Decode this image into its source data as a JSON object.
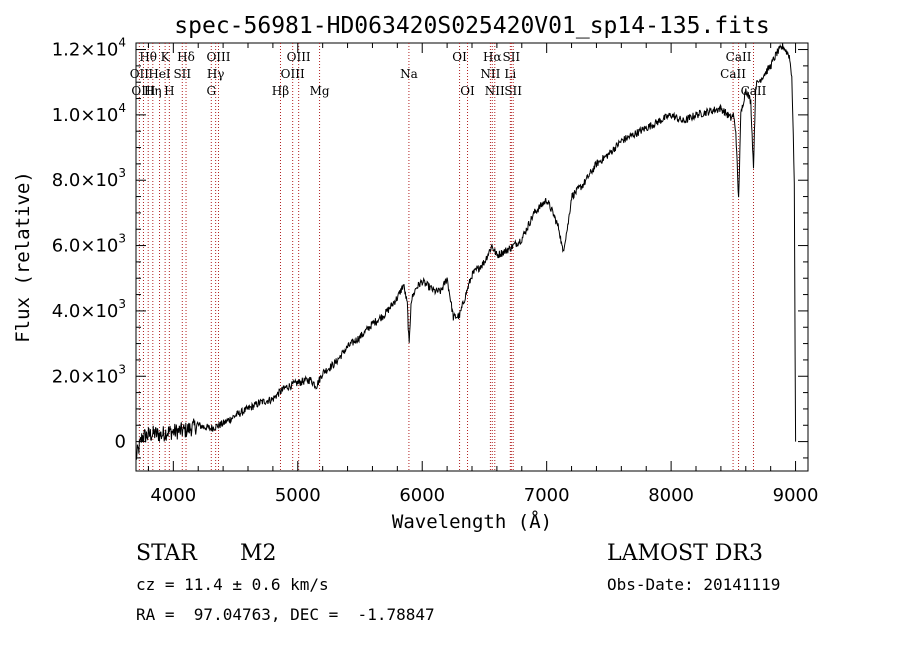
{
  "chart_data": {
    "type": "line",
    "title": "spec-56981-HD063420S025420V01_sp14-135.fits",
    "xlabel": "Wavelength (Å)",
    "ylabel": "Flux (relative)",
    "xlim": [
      3700,
      9100
    ],
    "ylim": [
      -900,
      12200
    ],
    "x_ticks": [
      4000,
      5000,
      6000,
      7000,
      8000,
      9000
    ],
    "x_tick_labels": [
      "4000",
      "5000",
      "6000",
      "7000",
      "8000",
      "9000"
    ],
    "y_ticks": [
      {
        "value": 0,
        "mantissa": "0",
        "exp": ""
      },
      {
        "value": 2000,
        "mantissa": "2.0×10",
        "exp": "3"
      },
      {
        "value": 4000,
        "mantissa": "4.0×10",
        "exp": "3"
      },
      {
        "value": 6000,
        "mantissa": "6.0×10",
        "exp": "3"
      },
      {
        "value": 8000,
        "mantissa": "8.0×10",
        "exp": "3"
      },
      {
        "value": 10000,
        "mantissa": "1.0×10",
        "exp": "4"
      },
      {
        "value": 12000,
        "mantissa": "1.2×10",
        "exp": "4"
      }
    ],
    "line_color": "#000000",
    "line_marker_color": "#b22222",
    "spectrum": {
      "x": [
        3700,
        3750,
        3800,
        3850,
        3900,
        3950,
        4000,
        4100,
        4200,
        4300,
        4400,
        4500,
        4600,
        4700,
        4800,
        4850,
        4900,
        5000,
        5100,
        5150,
        5200,
        5300,
        5400,
        5500,
        5600,
        5700,
        5800,
        5850,
        5880,
        5895,
        5910,
        5950,
        6000,
        6100,
        6150,
        6200,
        6250,
        6300,
        6350,
        6400,
        6450,
        6500,
        6560,
        6600,
        6700,
        6800,
        6900,
        7000,
        7050,
        7100,
        7130,
        7170,
        7200,
        7300,
        7400,
        7500,
        7600,
        7700,
        7800,
        7900,
        8000,
        8100,
        8200,
        8300,
        8400,
        8480,
        8500,
        8520,
        8542,
        8560,
        8600,
        8640,
        8662,
        8680,
        8700,
        8800,
        8850,
        8900,
        8950,
        8970,
        8990,
        9000
      ],
      "y": [
        -500,
        150,
        200,
        250,
        200,
        300,
        300,
        350,
        500,
        400,
        550,
        800,
        1000,
        1200,
        1300,
        1500,
        1650,
        1800,
        1900,
        1700,
        2100,
        2400,
        2900,
        3200,
        3600,
        3900,
        4400,
        4800,
        4200,
        2900,
        4300,
        4700,
        4900,
        4600,
        4600,
        5000,
        3800,
        3850,
        4500,
        5100,
        5300,
        5500,
        6000,
        5700,
        5900,
        6200,
        7000,
        7400,
        7000,
        6500,
        5800,
        6600,
        7500,
        7900,
        8500,
        8800,
        9200,
        9400,
        9600,
        9800,
        10000,
        9800,
        10000,
        10100,
        10200,
        9900,
        10000,
        9500,
        7400,
        10000,
        10800,
        10400,
        8400,
        10900,
        11000,
        11500,
        11900,
        12100,
        11800,
        11200,
        8000,
        0
      ]
    },
    "spectral_lines": [
      {
        "name": "Hθ",
        "wavelength": 3798,
        "row": 0
      },
      {
        "name": "OII",
        "wavelength": 3727,
        "row": 1
      },
      {
        "name": "OIII",
        "wavelength": 3760,
        "row": 2
      },
      {
        "name": "K",
        "wavelength": 3934,
        "row": 0
      },
      {
        "name": "HeI",
        "wavelength": 3889,
        "row": 1
      },
      {
        "name": "Hη",
        "wavelength": 3835,
        "row": 2
      },
      {
        "name": "H",
        "wavelength": 3968,
        "row": 2
      },
      {
        "name": "Hδ",
        "wavelength": 4102,
        "row": 0
      },
      {
        "name": "SII",
        "wavelength": 4072,
        "row": 1
      },
      {
        "name": "OIII",
        "wavelength": 4363,
        "row": 0
      },
      {
        "name": "Hγ",
        "wavelength": 4340,
        "row": 1
      },
      {
        "name": "G",
        "wavelength": 4305,
        "row": 2
      },
      {
        "name": "Hβ",
        "wavelength": 4861,
        "row": 2
      },
      {
        "name": "OIII",
        "wavelength": 5007,
        "row": 0
      },
      {
        "name": "OIII",
        "wavelength": 4959,
        "row": 1
      },
      {
        "name": "Mg",
        "wavelength": 5175,
        "row": 2
      },
      {
        "name": "Na",
        "wavelength": 5893,
        "row": 1
      },
      {
        "name": "OI",
        "wavelength": 6300,
        "row": 0
      },
      {
        "name": "OI",
        "wavelength": 6364,
        "row": 2
      },
      {
        "name": "Hα",
        "wavelength": 6563,
        "row": 0
      },
      {
        "name": "NII",
        "wavelength": 6548,
        "row": 1
      },
      {
        "name": "NII",
        "wavelength": 6583,
        "row": 2
      },
      {
        "name": "SII",
        "wavelength": 6716,
        "row": 0
      },
      {
        "name": "Li",
        "wavelength": 6708,
        "row": 1
      },
      {
        "name": "SII",
        "wavelength": 6731,
        "row": 2
      },
      {
        "name": "CaII",
        "wavelength": 8542,
        "row": 0
      },
      {
        "name": "CaII",
        "wavelength": 8498,
        "row": 1
      },
      {
        "name": "CaII",
        "wavelength": 8662,
        "row": 2
      }
    ]
  },
  "info": {
    "class_label": "STAR",
    "subclass": "M2",
    "survey": "LAMOST DR3",
    "cz": "cz = 11.4 ± 0.6 km/s",
    "obs_date": "Obs-Date: 20141119",
    "coords": "RA =  97.04763, DEC =  -1.78847"
  }
}
